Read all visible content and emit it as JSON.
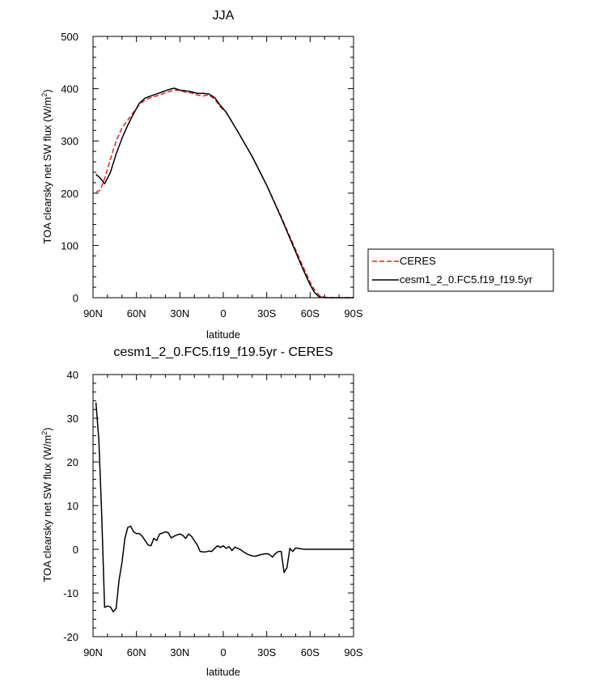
{
  "chart_data": [
    {
      "type": "line",
      "title": "JJA",
      "xlabel": "latitude",
      "ylabel": "TOA clearsky net SW flux (W/m²)",
      "xlim": [
        90,
        -90
      ],
      "ylim": [
        0,
        500
      ],
      "grid": false,
      "x_ticks": [
        90,
        60,
        30,
        0,
        -30,
        -60,
        -90
      ],
      "x_tick_labels": [
        "90N",
        "60N",
        "30N",
        "0",
        "30S",
        "60S",
        "90S"
      ],
      "y_ticks": [
        0,
        100,
        200,
        300,
        400,
        500
      ],
      "y_tick_labels": [
        "0",
        "100",
        "200",
        "300",
        "400",
        "500"
      ],
      "legend": {
        "placement": "right",
        "entries": [
          "CERES",
          "cesm1_2_0.FC5.f19_f19.5yr"
        ]
      },
      "series": [
        {
          "name": "CERES",
          "color": "#e8201f",
          "dash": "dashed",
          "x": [
            88,
            85,
            82,
            78,
            74,
            70,
            66,
            62,
            58,
            54,
            50,
            46,
            42,
            38,
            34,
            30,
            26,
            22,
            18,
            14,
            10,
            6,
            2,
            -2,
            -10,
            -20,
            -30,
            -40,
            -50,
            -55,
            -60,
            -63,
            -66,
            -70,
            -75,
            -80,
            -85,
            -90
          ],
          "y": [
            202,
            206,
            228,
            265,
            300,
            325,
            340,
            355,
            370,
            378,
            383,
            386,
            390,
            394,
            397,
            397,
            393,
            392,
            388,
            386,
            388,
            380,
            365,
            355,
            318,
            270,
            215,
            155,
            92,
            60,
            30,
            15,
            5,
            1,
            0,
            0,
            0,
            0
          ]
        },
        {
          "name": "cesm1_2_0.FC5.f19_f19.5yr",
          "color": "#000000",
          "dash": "solid",
          "x": [
            88,
            85,
            82,
            78,
            74,
            70,
            66,
            62,
            58,
            54,
            50,
            46,
            42,
            38,
            34,
            30,
            26,
            22,
            18,
            14,
            10,
            6,
            2,
            -2,
            -10,
            -20,
            -30,
            -40,
            -50,
            -55,
            -60,
            -63,
            -66,
            -70,
            -75,
            -80,
            -85,
            -90
          ],
          "y": [
            236,
            229,
            218,
            240,
            275,
            305,
            330,
            352,
            372,
            382,
            386,
            390,
            394,
            398,
            401,
            397,
            396,
            394,
            391,
            391,
            390,
            383,
            368,
            355,
            318,
            270,
            215,
            153,
            88,
            55,
            25,
            10,
            2,
            0,
            0,
            0,
            0,
            0
          ]
        }
      ]
    },
    {
      "type": "line",
      "title": "cesm1_2_0.FC5.f19_f19.5yr - CERES",
      "xlabel": "latitude",
      "ylabel": "TOA clearsky net SW flux (W/m²)",
      "xlim": [
        90,
        -90
      ],
      "ylim": [
        -20,
        40
      ],
      "grid": false,
      "x_ticks": [
        90,
        60,
        30,
        0,
        -30,
        -60,
        -90
      ],
      "x_tick_labels": [
        "90N",
        "60N",
        "30N",
        "0",
        "30S",
        "60S",
        "90S"
      ],
      "y_ticks": [
        -20,
        -10,
        0,
        10,
        20,
        30,
        40
      ],
      "y_tick_labels": [
        "-20",
        "-10",
        "0",
        "10",
        "20",
        "30",
        "40"
      ],
      "series": [
        {
          "color": "#000000",
          "dash": "solid",
          "x": [
            88,
            86,
            84,
            82,
            80,
            78,
            76,
            74,
            72,
            70,
            68,
            66,
            64,
            62,
            60,
            58,
            56,
            54,
            52,
            50,
            48,
            46,
            44,
            42,
            40,
            38,
            36,
            34,
            32,
            30,
            28,
            26,
            24,
            22,
            20,
            18,
            16,
            14,
            12,
            10,
            8,
            6,
            4,
            2,
            0,
            -2,
            -4,
            -6,
            -8,
            -10,
            -12,
            -14,
            -16,
            -18,
            -20,
            -22,
            -24,
            -26,
            -28,
            -30,
            -32,
            -34,
            -36,
            -38,
            -40,
            -42,
            -44,
            -46,
            -48,
            -50,
            -52,
            -54,
            -56,
            -58,
            -60,
            -62,
            -64,
            -66,
            -68,
            -70,
            -72,
            -74,
            -76,
            -78,
            -80,
            -82,
            -84,
            -86,
            -88,
            -90
          ],
          "y": [
            33.6,
            25,
            8,
            -13.3,
            -13,
            -13.2,
            -14.3,
            -13.5,
            -7,
            -3,
            2.5,
            5,
            5.3,
            4,
            3.6,
            3.6,
            3,
            2,
            1,
            0.8,
            2.5,
            2,
            3.5,
            3.7,
            4,
            3.8,
            2.6,
            3,
            3.3,
            3.5,
            3.2,
            2.5,
            3.5,
            3,
            2,
            1,
            -0.5,
            -0.6,
            -0.6,
            -0.4,
            -0.5,
            0.2,
            0.8,
            0.4,
            0.8,
            0.2,
            0.6,
            -0.3,
            0.5,
            0.2,
            -0.1,
            -0.6,
            -1,
            -1.3,
            -1.5,
            -1.6,
            -1.4,
            -1.2,
            -1.1,
            -1.0,
            -1.2,
            -1.8,
            -1.0,
            -0.5,
            -0.5,
            -5.3,
            -4.2,
            0.2,
            -0.5,
            0.3,
            0.2,
            0.1,
            0,
            0,
            0,
            0,
            0,
            0,
            0,
            0,
            0,
            0,
            0,
            0,
            0,
            0,
            0,
            0,
            0,
            0
          ]
        }
      ]
    }
  ]
}
